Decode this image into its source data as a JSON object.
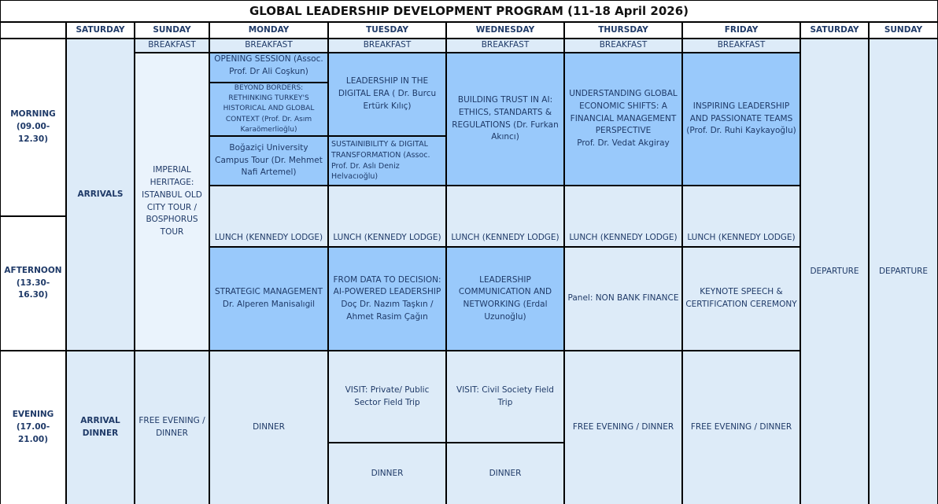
{
  "title": "GLOBAL LEADERSHIP DEVELOPMENT PROGRAM (11-18 April 2026)",
  "colors": {
    "session": "#99c9fb",
    "light": "#ddebf8",
    "text": "#1f3a68"
  },
  "days": [
    "SATURDAY",
    "SUNDAY",
    "MONDAY",
    "TUESDAY",
    "WEDNESDAY",
    "THURSDAY",
    "FRIDAY",
    "SATURDAY",
    "SUNDAY"
  ],
  "periods": {
    "morning": "MORNING\n(09.00-12.30)",
    "afternoon": "AFTERNOON\n(13.30-16.30)",
    "evening": "EVENING\n(17.00-21.00)"
  },
  "breakfast": "BREAKFAST",
  "lunch": "LUNCH (KENNEDY LODGE)",
  "dinner": "DINNER",
  "free_evening": "FREE EVENING / DINNER",
  "departure": "DEPARTURE",
  "saturday": {
    "arrivals": "ARRIVALS",
    "evening": "ARRIVAL DINNER"
  },
  "sunday": {
    "tour": "IMPERIAL HERITAGE: ISTANBUL OLD CITY TOUR / BOSPHORUS TOUR",
    "evening": "FREE EVENING / DINNER"
  },
  "monday": {
    "opening": "OPENING SESSION (Assoc. Prof. Dr Ali Coşkun)",
    "beyond": "BEYOND BORDERS: RETHINKING TURKEY'S HISTORICAL AND GLOBAL CONTEXT (Prof. Dr. Asım Karaömerlioğlu)",
    "tour": "Boğaziçi University Campus Tour (Dr. Mehmet Nafi Artemel)",
    "afternoon": "STRATEGIC MANAGEMENT Dr. Alperen Manisalıgil"
  },
  "tuesday": {
    "leadership": "LEADERSHIP IN THE DIGITAL ERA ( Dr. Burcu Ertürk Kılıç)",
    "sustainability": "SUSTAINIBILITY & DIGITAL TRANSFORMATION (Assoc. Prof. Dr. Aslı Deniz Helvacıoğlu)",
    "afternoon": "FROM DATA TO DECISION: AI-POWERED LEADERSHIP Doç Dr. Nazım Taşkın / Ahmet Rasim Çağın",
    "visit": "VISIT: Private/ Public Sector Field Trip"
  },
  "wednesday": {
    "morning": "BUILDING TRUST IN AI: ETHICS, STANDARTS & REGULATIONS (Dr. Furkan Akıncı)",
    "afternoon": "LEADERSHIP COMMUNICATION AND NETWORKING (Erdal Uzunoğlu)",
    "visit": "VISIT: Civil Society Field Trip"
  },
  "thursday": {
    "morning": "UNDERSTANDING GLOBAL ECONOMIC SHIFTS: A FINANCIAL MANAGEMENT PERSPECTIVE",
    "morning_speaker": "Prof. Dr. Vedat Akgiray",
    "afternoon": "Panel: NON BANK FINANCE"
  },
  "friday": {
    "morning": "INSPIRING LEADERSHIP AND PASSIONATE TEAMS (Prof. Dr. Ruhi Kaykayoğlu)",
    "afternoon": "KEYNOTE SPEECH & CERTIFICATION CEREMONY"
  }
}
